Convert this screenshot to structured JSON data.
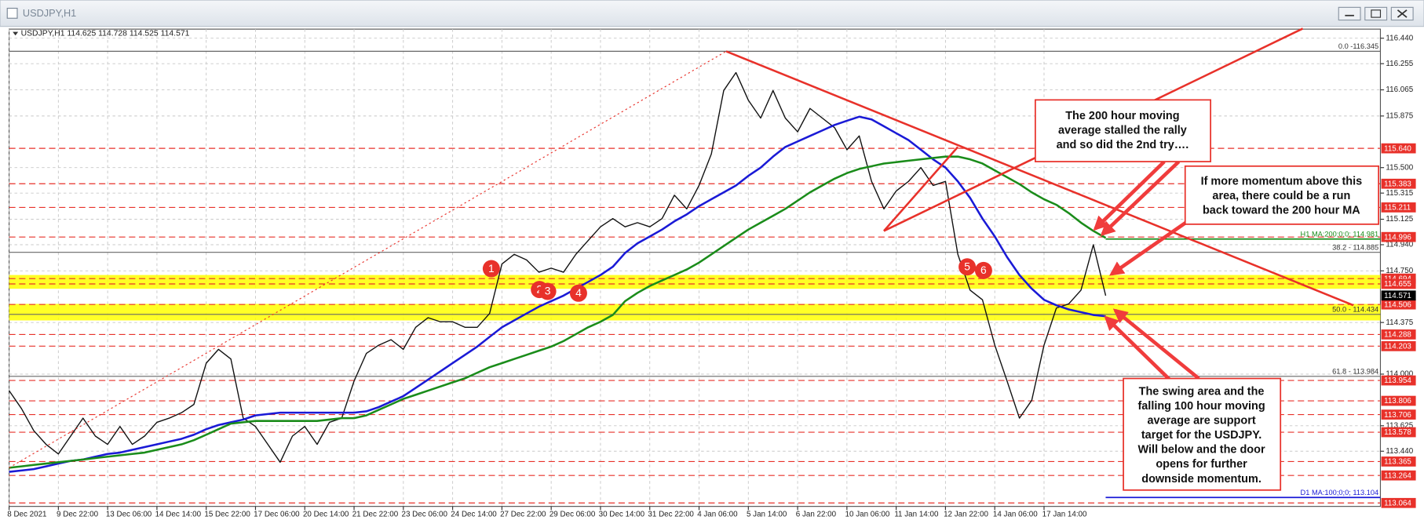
{
  "chart_data": {
    "type": "line",
    "window_title": "USDJPY,H1",
    "title": "USDJPY,H1 114.625 114.728 114.525 114.571",
    "categories": [
      "8 Dec 2021",
      null,
      null,
      null,
      "9 Dec 22:00",
      null,
      null,
      null,
      "13 Dec 06:00",
      null,
      null,
      null,
      "14 Dec 14:00",
      null,
      null,
      null,
      "15 Dec 22:00",
      null,
      null,
      null,
      "17 Dec 06:00",
      null,
      null,
      null,
      "20 Dec 14:00",
      null,
      null,
      null,
      "21 Dec 22:00",
      null,
      null,
      null,
      "23 Dec 06:00",
      null,
      null,
      null,
      "24 Dec 14:00",
      null,
      null,
      null,
      "27 Dec 22:00",
      null,
      null,
      null,
      "29 Dec 06:00",
      null,
      null,
      null,
      "30 Dec 14:00",
      null,
      null,
      null,
      "31 Dec 22:00",
      null,
      null,
      null,
      "4 Jan 06:00",
      null,
      null,
      null,
      "5 Jan 14:00",
      null,
      null,
      null,
      "6 Jan 22:00",
      null,
      null,
      null,
      "10 Jan 06:00",
      null,
      null,
      null,
      "11 Jan 14:00",
      null,
      null,
      null,
      "12 Jan 22:00",
      null,
      null,
      null,
      "14 Jan 06:00",
      null,
      null,
      null,
      "17 Jan 14:00",
      null,
      null,
      null,
      null,
      null
    ],
    "series": [
      {
        "color": "#111111",
        "values": [
          113.88,
          113.75,
          113.59,
          113.49,
          113.42,
          113.55,
          113.68,
          113.55,
          113.49,
          113.62,
          113.49,
          113.55,
          113.65,
          113.68,
          113.72,
          113.78,
          114.08,
          114.18,
          114.11,
          113.68,
          113.62,
          113.49,
          113.36,
          113.55,
          113.62,
          113.49,
          113.65,
          113.68,
          113.95,
          114.15,
          114.21,
          114.25,
          114.18,
          114.34,
          114.41,
          114.38,
          114.38,
          114.34,
          114.34,
          114.44,
          114.8,
          114.87,
          114.83,
          114.74,
          114.77,
          114.74,
          114.87,
          114.97,
          115.07,
          115.13,
          115.07,
          115.1,
          115.07,
          115.13,
          115.3,
          115.2,
          115.37,
          115.6,
          116.06,
          116.19,
          115.99,
          115.86,
          116.06,
          115.86,
          115.76,
          115.93,
          115.86,
          115.79,
          115.63,
          115.73,
          115.4,
          115.2,
          115.33,
          115.4,
          115.5,
          115.37,
          115.4,
          114.87,
          114.61,
          114.54,
          114.21,
          113.95,
          113.68,
          113.81,
          114.21,
          114.48,
          114.51,
          114.61,
          114.94,
          114.57
        ]
      },
      {
        "color": "#1a1ad6",
        "values": [
          113.29,
          113.3,
          113.31,
          113.33,
          113.35,
          113.37,
          113.38,
          113.4,
          113.42,
          113.43,
          113.45,
          113.47,
          113.49,
          113.51,
          113.53,
          113.56,
          113.6,
          113.63,
          113.65,
          113.67,
          113.7,
          113.71,
          113.72,
          113.72,
          113.72,
          113.72,
          113.72,
          113.72,
          113.72,
          113.73,
          113.76,
          113.8,
          113.84,
          113.9,
          113.96,
          114.02,
          114.08,
          114.14,
          114.2,
          114.27,
          114.34,
          114.39,
          114.44,
          114.49,
          114.53,
          114.57,
          114.62,
          114.67,
          114.72,
          114.78,
          114.88,
          114.95,
          115.0,
          115.05,
          115.11,
          115.16,
          115.22,
          115.27,
          115.32,
          115.37,
          115.44,
          115.5,
          115.58,
          115.65,
          115.69,
          115.73,
          115.77,
          115.81,
          115.84,
          115.87,
          115.85,
          115.8,
          115.75,
          115.7,
          115.63,
          115.56,
          115.5,
          115.4,
          115.28,
          115.13,
          115.0,
          114.85,
          114.72,
          114.62,
          114.54,
          114.5,
          114.47,
          114.45,
          114.43,
          114.42
        ]
      },
      {
        "color": "#1a8c1a",
        "values": [
          113.32,
          113.33,
          113.34,
          113.35,
          113.36,
          113.37,
          113.38,
          113.39,
          113.4,
          113.41,
          113.42,
          113.43,
          113.45,
          113.47,
          113.49,
          113.52,
          113.56,
          113.6,
          113.64,
          113.65,
          113.66,
          113.66,
          113.66,
          113.66,
          113.66,
          113.66,
          113.67,
          113.68,
          113.68,
          113.7,
          113.74,
          113.78,
          113.82,
          113.85,
          113.88,
          113.91,
          113.94,
          113.97,
          114.01,
          114.05,
          114.08,
          114.11,
          114.14,
          114.17,
          114.2,
          114.24,
          114.29,
          114.34,
          114.38,
          114.43,
          114.53,
          114.59,
          114.64,
          114.68,
          114.72,
          114.76,
          114.81,
          114.87,
          114.93,
          114.99,
          115.05,
          115.1,
          115.15,
          115.2,
          115.26,
          115.32,
          115.37,
          115.42,
          115.46,
          115.49,
          115.51,
          115.53,
          115.54,
          115.55,
          115.56,
          115.57,
          115.58,
          115.58,
          115.56,
          115.53,
          115.48,
          115.43,
          115.38,
          115.32,
          115.27,
          115.23,
          115.17,
          115.1,
          115.04,
          114.99
        ]
      }
    ],
    "xlim": [
      0,
      111.3
    ],
    "ylim": [
      113.039,
      116.506
    ],
    "yticks": [
      {
        "value": 116.44,
        "label": "116.440"
      },
      {
        "value": 116.255,
        "label": "116.255"
      },
      {
        "value": 116.065,
        "label": "116.065"
      },
      {
        "value": 115.875,
        "label": "115.875"
      },
      {
        "value": 115.5,
        "label": "115.500"
      },
      {
        "value": 115.315,
        "label": "115.315"
      },
      {
        "value": 115.125,
        "label": "115.125"
      },
      {
        "value": 114.94,
        "label": "114.940"
      },
      {
        "value": 114.75,
        "label": "114.750"
      },
      {
        "value": 114.375,
        "label": "114.375"
      },
      {
        "value": 114.0,
        "label": "114.000"
      },
      {
        "value": 113.625,
        "label": "113.625"
      },
      {
        "value": 113.44,
        "label": "113.440"
      }
    ],
    "grid": true,
    "zones": [
      [
        114.72,
        114.62
      ],
      [
        114.51,
        114.39
      ]
    ],
    "zone_color": "#ffff00",
    "levels": [
      {
        "value": 115.64,
        "label": "115.640"
      },
      {
        "value": 115.383,
        "label": "115.383"
      },
      {
        "value": 115.211,
        "label": "115.211"
      },
      {
        "value": 114.996,
        "label": "114.996"
      },
      {
        "value": 114.694,
        "label": "114.694"
      },
      {
        "value": 114.655,
        "label": "114.655"
      },
      {
        "value": 114.506,
        "label": "114.506"
      },
      {
        "value": 114.288,
        "label": "114.288"
      },
      {
        "value": 114.203,
        "label": "114.203"
      },
      {
        "value": 113.954,
        "label": "113.954"
      },
      {
        "value": 113.806,
        "label": "113.806"
      },
      {
        "value": 113.706,
        "label": "113.706"
      },
      {
        "value": 113.578,
        "label": "113.578"
      },
      {
        "value": 113.365,
        "label": "113.365"
      },
      {
        "value": 113.264,
        "label": "113.264"
      },
      {
        "value": 113.064,
        "label": "113.064"
      }
    ],
    "level_color": "#e8312a",
    "last_price": {
      "value": 114.571,
      "label": "114.571"
    },
    "fib_levels": [
      {
        "value": 116.345,
        "label": "0.0 -116.345"
      },
      {
        "value": 114.885,
        "label": "38.2 - 114.885"
      },
      {
        "value": 114.434,
        "label": "50.0 - 114.434"
      },
      {
        "value": 113.984,
        "label": "61.8 - 113.984"
      }
    ],
    "ma_lines": [
      {
        "value": 114.981,
        "label": "H1 MA:200;0;0; 114.981",
        "color": "#1a8c1a"
      },
      {
        "value": 113.104,
        "label": "D1 MA:100;0;0; 113.104",
        "color": "#1a1ad6"
      }
    ],
    "trendlines": [
      {
        "from": [
          58.2,
          116.345
        ],
        "to": [
          109.1,
          114.5
        ],
        "style": "solid"
      },
      {
        "from": [
          71.0,
          115.04
        ],
        "to": [
          105.0,
          116.51
        ],
        "style": "solid"
      },
      {
        "from": [
          71.0,
          115.04
        ],
        "to": [
          77.0,
          115.65
        ],
        "style": "solid"
      },
      {
        "from": [
          0,
          113.32
        ],
        "to": [
          58.2,
          116.345
        ],
        "style": "dotted"
      }
    ],
    "markers": [
      "1",
      "2",
      "3",
      "4",
      "5",
      "6"
    ],
    "annotations": [
      {
        "lines": [
          "The 200 hour moving",
          "average stalled the rally",
          "and so did the 2nd try…."
        ]
      },
      {
        "lines": [
          "If more momentum above this",
          "area, there could be a run",
          "back toward the 200 hour MA"
        ]
      },
      {
        "lines": [
          "The swing area and the",
          "falling 100 hour moving",
          "average are support",
          "target for the USDJPY.",
          "Will below and the door",
          "opens for further",
          "downside momentum."
        ]
      }
    ]
  }
}
